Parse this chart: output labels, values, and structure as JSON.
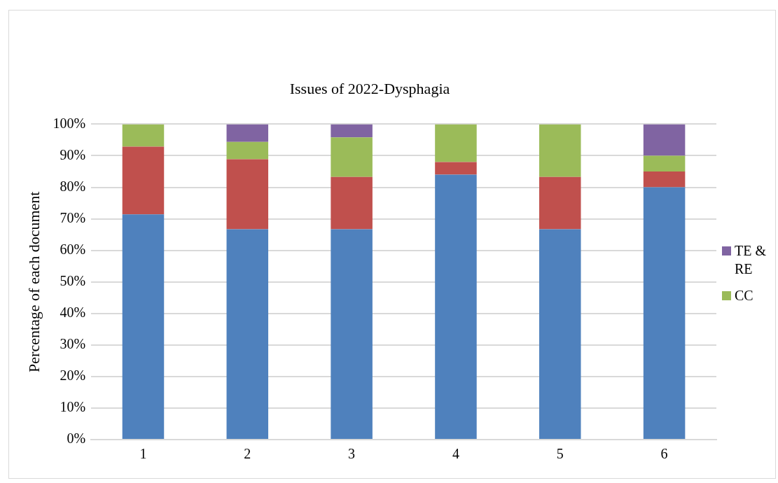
{
  "chart_data": {
    "type": "bar",
    "stacked": true,
    "title": "Issues of 2022-Dysphagia",
    "ylabel": "Percentage of each document",
    "categories": [
      "1",
      "2",
      "3",
      "4",
      "5",
      "6"
    ],
    "series": [
      {
        "color": "#4f81bd",
        "values": [
          71.4,
          66.7,
          66.7,
          84,
          66.7,
          80
        ]
      },
      {
        "color": "#c0504d",
        "values": [
          21.5,
          22.2,
          16.6,
          4,
          16.6,
          5
        ]
      },
      {
        "name": "CC",
        "color": "#9bbb59",
        "values": [
          7.1,
          5.5,
          12.5,
          12,
          16.7,
          5
        ]
      },
      {
        "name": "TE & RE",
        "color": "#8064a2",
        "values": [
          0,
          5.6,
          4.2,
          0,
          0,
          10
        ]
      }
    ],
    "ylim": [
      0,
      100
    ],
    "yticks": [
      {
        "value": 0,
        "label": "0%"
      },
      {
        "value": 10,
        "label": "10%"
      },
      {
        "value": 20,
        "label": "20%"
      },
      {
        "value": 30,
        "label": "30%"
      },
      {
        "value": 40,
        "label": "40%"
      },
      {
        "value": 50,
        "label": "50%"
      },
      {
        "value": 60,
        "label": "60%"
      },
      {
        "value": 70,
        "label": "70%"
      },
      {
        "value": 80,
        "label": "80%"
      },
      {
        "value": 90,
        "label": "90%"
      },
      {
        "value": 100,
        "label": "100%"
      }
    ],
    "grid": "y",
    "legend": "right"
  }
}
